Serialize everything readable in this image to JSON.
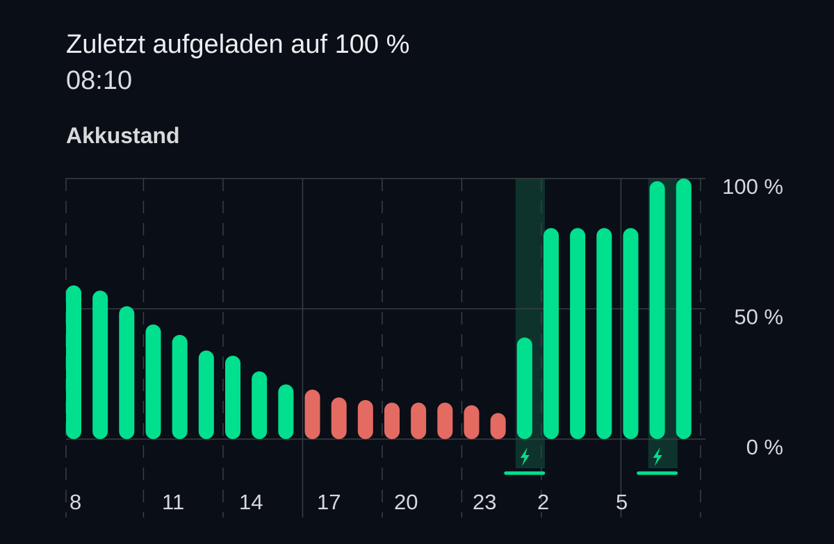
{
  "header": {
    "title": "Zuletzt aufgeladen auf 100 %",
    "time": "08:10"
  },
  "section_label": "Akkustand",
  "colors": {
    "background": "#090e17",
    "bar_normal": "#00e08e",
    "bar_low": "#e46b62",
    "charge_band": "#0f3a31",
    "grid": "#3a3f47",
    "text": "#d6d8db"
  },
  "icons": {
    "charging": "lightning-bolt-icon"
  },
  "chart_data": {
    "type": "bar",
    "title": "Akkustand",
    "ylim": [
      0,
      100
    ],
    "yticks": [
      "0 %",
      "50 %",
      "100 %"
    ],
    "xtick_labels": [
      "8",
      "11",
      "14",
      "17",
      "20",
      "23",
      "2",
      "5"
    ],
    "values": [
      59,
      57,
      51,
      44,
      40,
      34,
      32,
      26,
      21,
      19,
      16,
      15,
      14,
      14,
      14,
      13,
      10,
      39,
      81,
      81,
      81,
      81,
      99,
      100
    ],
    "low_battery_bars": [
      9,
      10,
      11,
      12,
      13,
      14,
      15,
      16
    ],
    "charging_periods": [
      [
        17,
        17
      ],
      [
        22,
        22
      ]
    ],
    "grid": true
  }
}
